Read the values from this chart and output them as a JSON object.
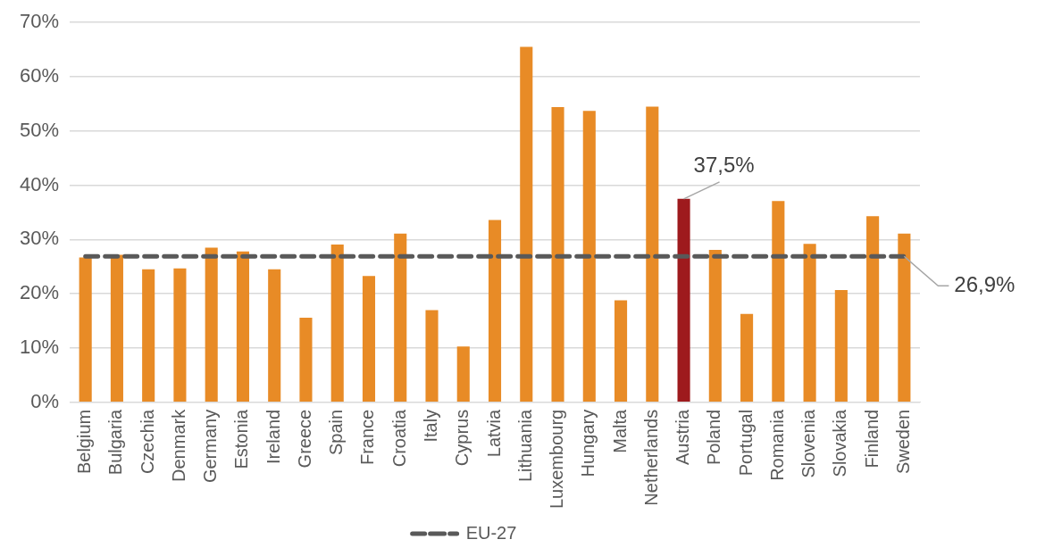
{
  "chart_data": {
    "type": "bar",
    "categories": [
      "Belgium",
      "Bulgaria",
      "Czechia",
      "Denmark",
      "Germany",
      "Estonia",
      "Ireland",
      "Greece",
      "Spain",
      "France",
      "Croatia",
      "Italy",
      "Cyprus",
      "Latvia",
      "Lithuania",
      "Luxembourg",
      "Hungary",
      "Malta",
      "Netherlands",
      "Austria",
      "Poland",
      "Portugal",
      "Romania",
      "Slovenia",
      "Slovakia",
      "Finland",
      "Sweden"
    ],
    "series": [
      {
        "colors": [
          "#e88b26",
          "#e88b26",
          "#e88b26",
          "#e88b26",
          "#e88b26",
          "#e88b26",
          "#e88b26",
          "#e88b26",
          "#e88b26",
          "#e88b26",
          "#e88b26",
          "#e88b26",
          "#e88b26",
          "#e88b26",
          "#e88b26",
          "#e88b26",
          "#e88b26",
          "#e88b26",
          "#e88b26",
          "#9e1a1d",
          "#e88b26",
          "#e88b26",
          "#e88b26",
          "#e88b26",
          "#e88b26",
          "#e88b26",
          "#e88b26"
        ],
        "values": [
          26.7,
          27.2,
          24.5,
          24.7,
          28.5,
          27.8,
          24.5,
          15.6,
          29.1,
          23.3,
          31.1,
          17.0,
          10.3,
          33.6,
          65.5,
          54.4,
          53.7,
          18.8,
          54.5,
          37.5,
          28.1,
          16.3,
          37.1,
          29.2,
          20.7,
          34.3,
          31.1
        ],
        "value_labels": [
          null,
          null,
          null,
          null,
          null,
          null,
          null,
          null,
          null,
          null,
          null,
          null,
          null,
          null,
          null,
          null,
          null,
          null,
          null,
          "37,5%",
          null,
          null,
          null,
          null,
          null,
          null,
          null
        ]
      },
      {
        "type": "line",
        "name": "EU-27",
        "color": "#595959",
        "line_style": "dashed",
        "marker": "none",
        "values": [
          26.9,
          26.9,
          26.9,
          26.9,
          26.9,
          26.9,
          26.9,
          26.9,
          26.9,
          26.9,
          26.9,
          26.9,
          26.9,
          26.9,
          26.9,
          26.9,
          26.9,
          26.9,
          26.9,
          26.9,
          26.9,
          26.9,
          26.9,
          26.9,
          26.9,
          26.9,
          26.9
        ]
      }
    ],
    "annotations": [
      {
        "text": "26,9%",
        "x": "Sweden",
        "y": 26.9
      }
    ],
    "ylim": [
      0,
      70
    ],
    "yticks": [
      {
        "value": 0,
        "label": "0%"
      },
      {
        "value": 10,
        "label": "10%"
      },
      {
        "value": 20,
        "label": "20%"
      },
      {
        "value": 30,
        "label": "30%"
      },
      {
        "value": 40,
        "label": "40%"
      },
      {
        "value": 50,
        "label": "50%"
      },
      {
        "value": 60,
        "label": "60%"
      },
      {
        "value": 70,
        "label": "70%"
      }
    ],
    "grid": "y",
    "legend": "bottom"
  }
}
